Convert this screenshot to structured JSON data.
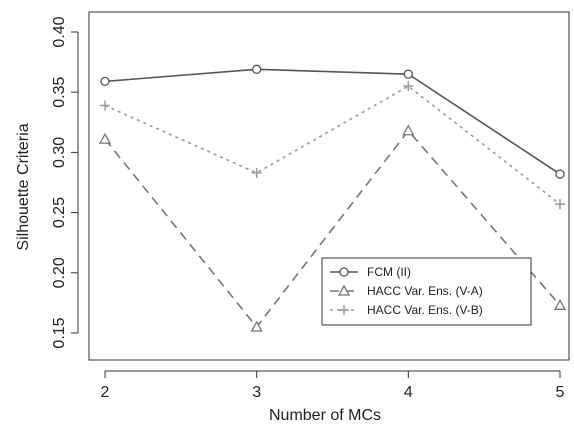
{
  "chart_data": {
    "type": "line",
    "title": "",
    "xlabel": "Number of MCs",
    "ylabel": "Silhouette Criteria",
    "x": [
      2,
      3,
      4,
      5
    ],
    "xticks": [
      "2",
      "3",
      "4",
      "5"
    ],
    "xlim": [
      2,
      5
    ],
    "ylim": [
      0.15,
      0.4
    ],
    "yticks": [
      "0.15",
      "0.20",
      "0.25",
      "0.30",
      "0.35",
      "0.40"
    ],
    "grid": false,
    "legend_position": "bottom-right",
    "series": [
      {
        "name": "FCM (II)",
        "values": [
          0.359,
          0.369,
          0.365,
          0.282
        ],
        "color": "#555555",
        "line_style": "solid",
        "marker": "circle"
      },
      {
        "name": "HACC Var. Ens. (V-A)",
        "values": [
          0.311,
          0.155,
          0.318,
          0.173
        ],
        "color": "#777777",
        "line_style": "dashed",
        "marker": "triangle"
      },
      {
        "name": "HACC Var. Ens. (V-B)",
        "values": [
          0.339,
          0.283,
          0.355,
          0.257
        ],
        "color": "#9a9a9a",
        "line_style": "dotted",
        "marker": "plus"
      }
    ]
  }
}
